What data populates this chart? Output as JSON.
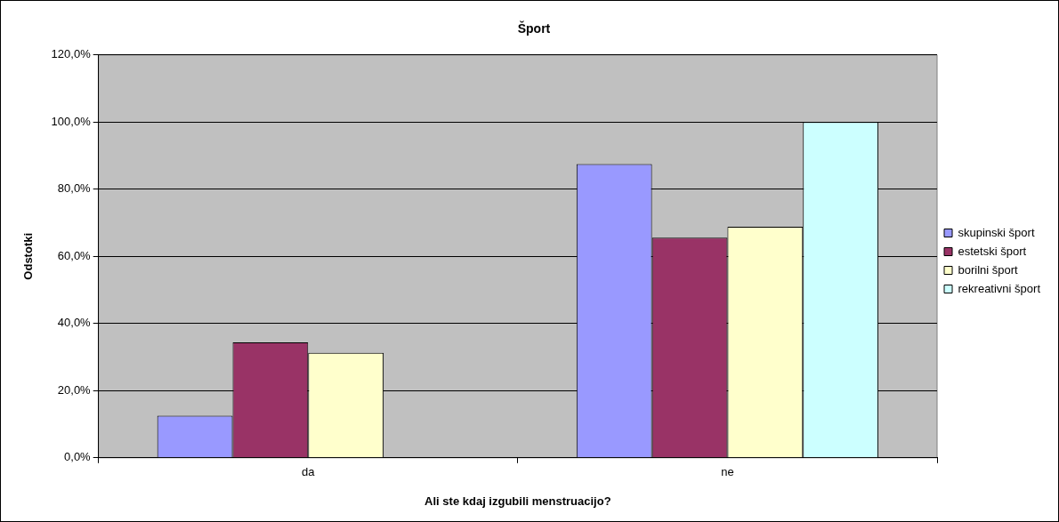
{
  "chart_data": {
    "type": "bar",
    "title": "Šport",
    "xlabel": "Ali ste kdaj izgubili menstruacijo?",
    "ylabel": "Odstotki",
    "categories": [
      "da",
      "ne"
    ],
    "series": [
      {
        "name": "skupinski šport",
        "color": "#9999ff",
        "values": [
          12.5,
          87.5
        ]
      },
      {
        "name": "estetski šport",
        "color": "#993366",
        "values": [
          34.4,
          65.6
        ]
      },
      {
        "name": "borilni šport",
        "color": "#ffffcc",
        "values": [
          31.3,
          68.8
        ]
      },
      {
        "name": "rekreativni šport",
        "color": "#ccffff",
        "values": [
          0,
          100
        ]
      }
    ],
    "ylim": [
      0,
      120
    ],
    "yticks": [
      {
        "value": 0,
        "label": "0,0%"
      },
      {
        "value": 20,
        "label": "20,0%"
      },
      {
        "value": 40,
        "label": "40,0%"
      },
      {
        "value": 60,
        "label": "60,0%"
      },
      {
        "value": 80,
        "label": "80,0%"
      },
      {
        "value": 100,
        "label": "100,0%"
      },
      {
        "value": 120,
        "label": "120,0%"
      }
    ],
    "grid": "y",
    "legend": "right"
  }
}
